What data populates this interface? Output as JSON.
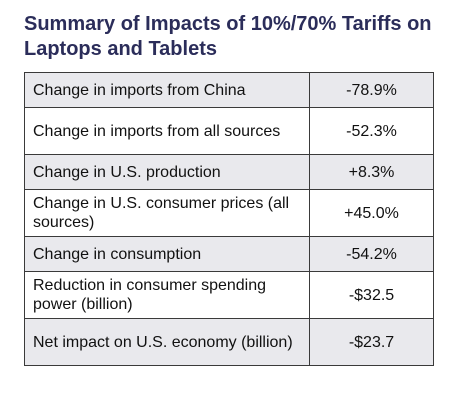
{
  "title": "Summary of Impacts of 10%/70% Tariffs on Laptops and Tablets",
  "chart_data": {
    "type": "table",
    "title": "Summary of Impacts of 10%/70% Tariffs on Laptops and Tablets",
    "rows": [
      {
        "label": "Change in imports from China",
        "value": "-78.9%"
      },
      {
        "label": "Change in imports from all sources",
        "value": "-52.3%"
      },
      {
        "label": "Change in U.S. production",
        "value": "+8.3%"
      },
      {
        "label": "Change in U.S. consumer prices (all sources)",
        "value": "+45.0%"
      },
      {
        "label": "Change in consumption",
        "value": "-54.2%"
      },
      {
        "label": "Reduction in consumer spending power (billion)",
        "value": "-$32.5"
      },
      {
        "label": "Net impact on U.S. economy (billion)",
        "value": "-$23.7"
      }
    ]
  }
}
